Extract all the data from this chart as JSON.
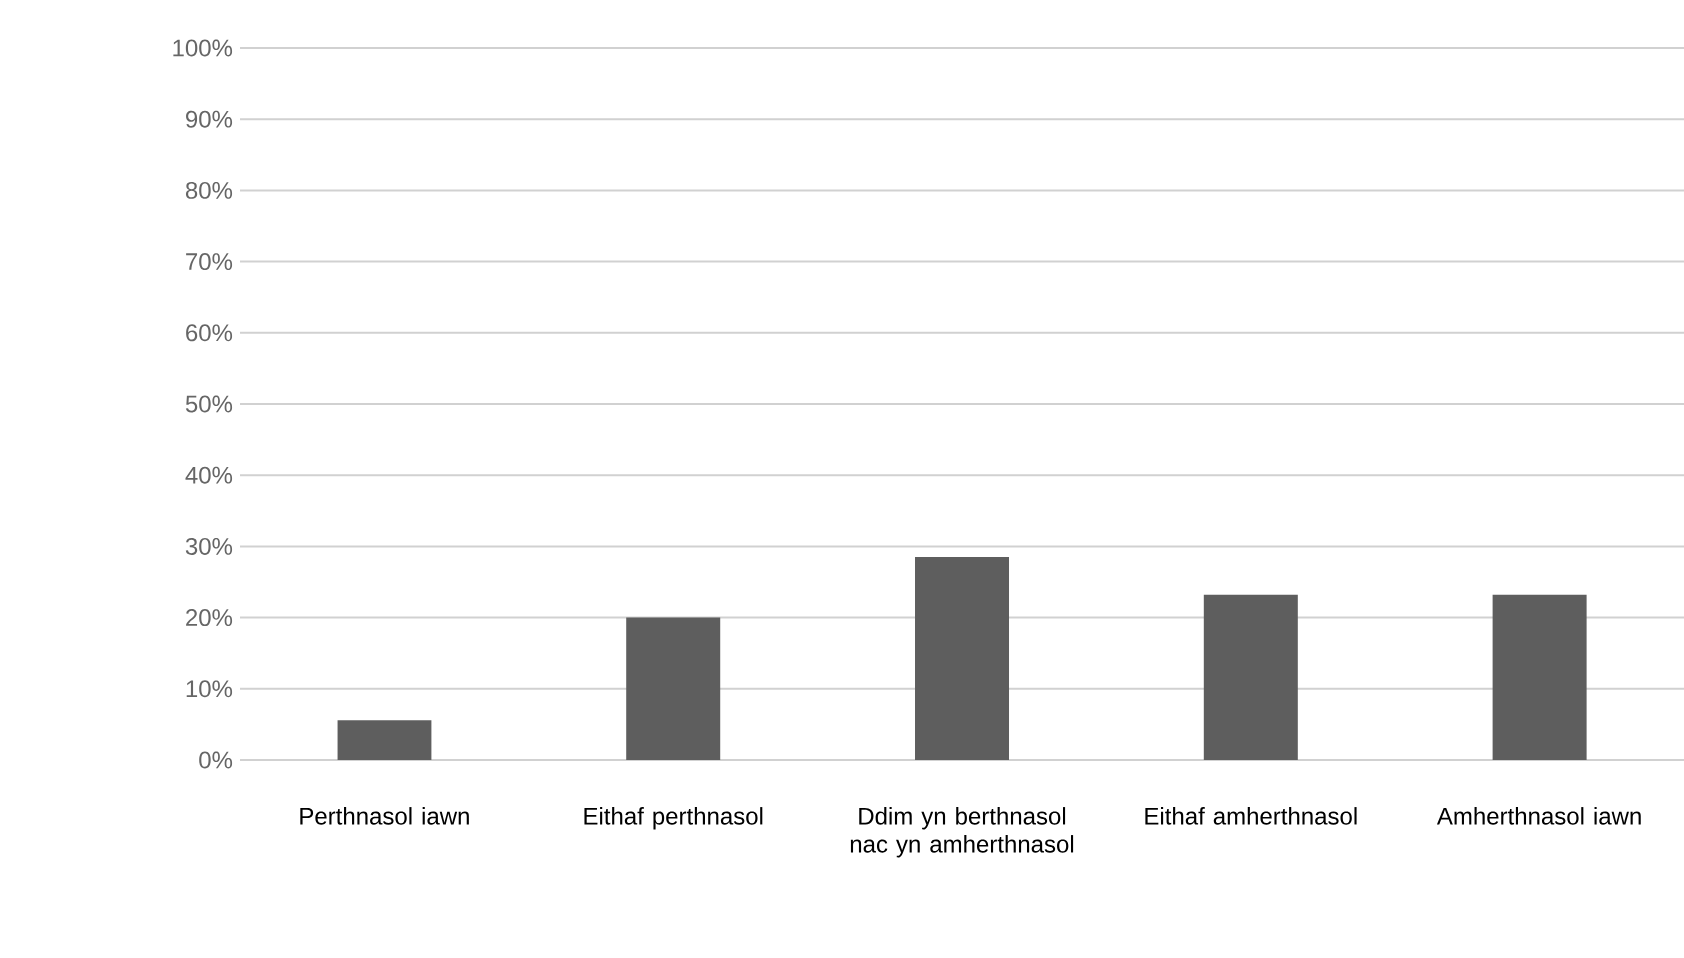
{
  "chart_data": {
    "type": "bar",
    "categories": [
      "Perthnasol iawn",
      "Eithaf perthnasol",
      "Ddim yn berthnasol nac yn amherthnasol",
      "Eithaf amherthnasol",
      "Amherthnasol iawn"
    ],
    "values": [
      5.6,
      20,
      28.5,
      23.2,
      23.2
    ],
    "color": "#5e5e5e",
    "ylim": [
      0,
      100
    ],
    "yticks": [
      {
        "value": 0,
        "label": "0%"
      },
      {
        "value": 10,
        "label": "10%"
      },
      {
        "value": 20,
        "label": "20%"
      },
      {
        "value": 30,
        "label": "30%"
      },
      {
        "value": 40,
        "label": "40%"
      },
      {
        "value": 50,
        "label": "50%"
      },
      {
        "value": 60,
        "label": "60%"
      },
      {
        "value": 70,
        "label": "70%"
      },
      {
        "value": 80,
        "label": "80%"
      },
      {
        "value": 90,
        "label": "90%"
      },
      {
        "value": 100,
        "label": "100%"
      }
    ],
    "grid": "y"
  }
}
